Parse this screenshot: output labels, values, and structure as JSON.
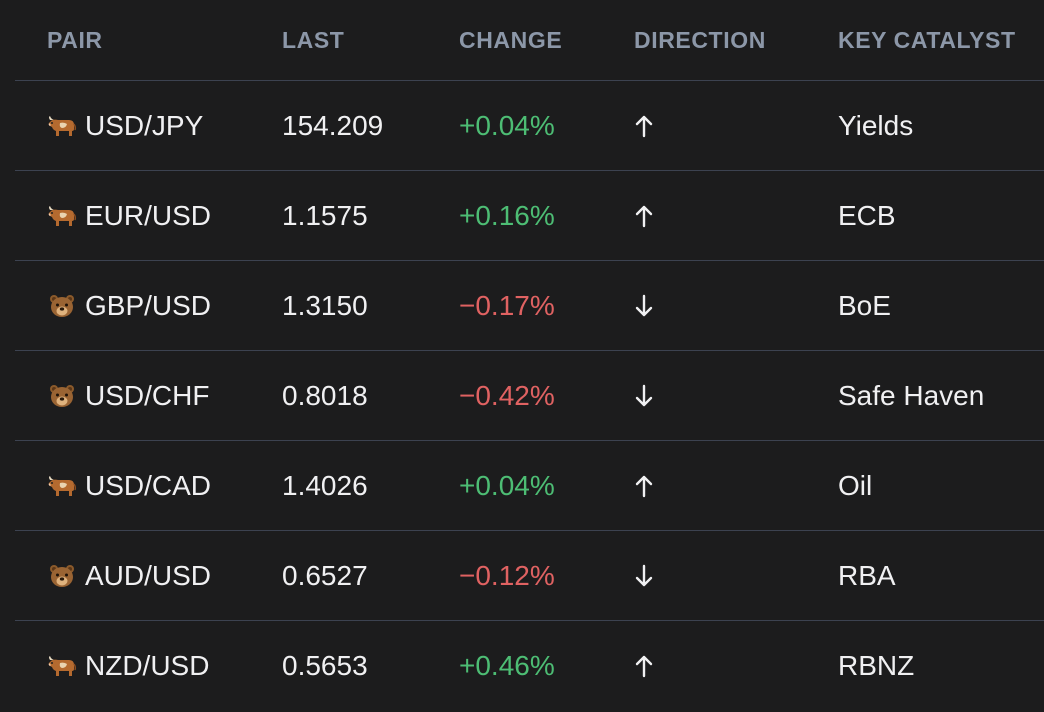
{
  "columns": {
    "pair": "PAIR",
    "last": "LAST",
    "change": "CHANGE",
    "direction": "DIRECTION",
    "catalyst": "KEY CATALYST"
  },
  "colors": {
    "positive": "#4dbd74",
    "negative": "#e06262",
    "header_text": "#8c97a8",
    "background": "#1c1c1d"
  },
  "rows": [
    {
      "sentiment_icon": "bull-icon",
      "pair": "USD/JPY",
      "last": "154.209",
      "change": "+0.04%",
      "direction": "up-arrow-icon",
      "catalyst": "Yields"
    },
    {
      "sentiment_icon": "bull-icon",
      "pair": "EUR/USD",
      "last": "1.1575",
      "change": "+0.16%",
      "direction": "up-arrow-icon",
      "catalyst": "ECB"
    },
    {
      "sentiment_icon": "bear-icon",
      "pair": "GBP/USD",
      "last": "1.3150",
      "change": "−0.17%",
      "direction": "down-arrow-icon",
      "catalyst": "BoE"
    },
    {
      "sentiment_icon": "bear-icon",
      "pair": "USD/CHF",
      "last": "0.8018",
      "change": "−0.42%",
      "direction": "down-arrow-icon",
      "catalyst": "Safe Haven"
    },
    {
      "sentiment_icon": "bull-icon",
      "pair": "USD/CAD",
      "last": "1.4026",
      "change": "+0.04%",
      "direction": "up-arrow-icon",
      "catalyst": "Oil"
    },
    {
      "sentiment_icon": "bear-icon",
      "pair": "AUD/USD",
      "last": "0.6527",
      "change": "−0.12%",
      "direction": "down-arrow-icon",
      "catalyst": "RBA"
    },
    {
      "sentiment_icon": "bull-icon",
      "pair": "NZD/USD",
      "last": "0.5653",
      "change": "+0.46%",
      "direction": "up-arrow-icon",
      "catalyst": "RBNZ"
    }
  ]
}
